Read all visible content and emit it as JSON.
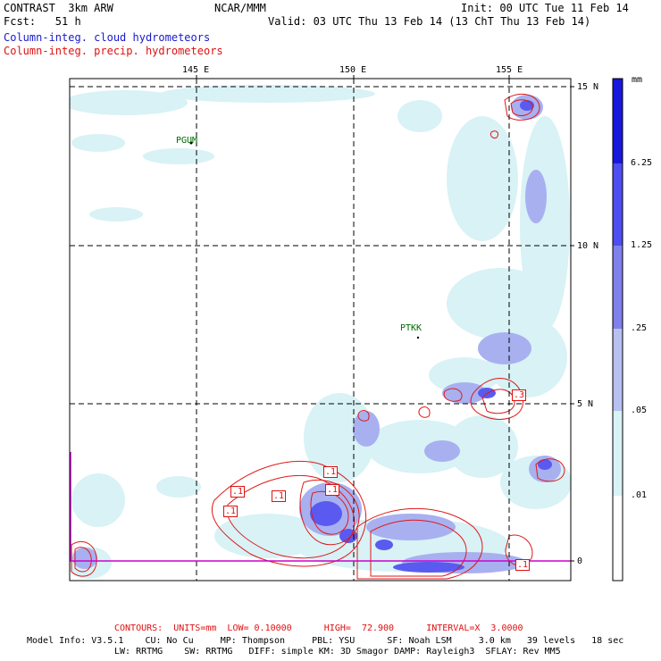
{
  "header": {
    "left_line1": "CONTRAST  3km ARW",
    "left_line2": "Fcst:   51 h",
    "center": "NCAR/MMM",
    "right_line1": "Init: 00 UTC Tue 11 Feb 14",
    "right_line2": "Valid: 03 UTC Thu 13 Feb 14 (13 ChT Thu 13 Feb 14)",
    "legend_cloud": "Column-integ. cloud hydrometeors",
    "legend_precip": "Column-integ. precip. hydrometeors"
  },
  "map": {
    "lon_labels": [
      "145 E",
      "150 E",
      "155 E"
    ],
    "lat_labels": [
      "15 N",
      "10 N",
      "5 N",
      "0"
    ],
    "stations": [
      "PGUM",
      "PTKK"
    ],
    "contour_labels": [
      ".1",
      ".1",
      ".1",
      ".1",
      ".1",
      ".3",
      ".1"
    ]
  },
  "colorbar": {
    "unit": "mm",
    "levels": [
      "6.25",
      "1.25",
      ".25",
      ".05",
      ".01"
    ],
    "colors": [
      "#1818dd",
      "#4d4df0",
      "#8080ec",
      "#b8c0f0",
      "#d8f2f6",
      "#ffffff"
    ]
  },
  "footer": {
    "contours": "CONTOURS:  UNITS=mm  LOW= 0.10000      HIGH=  72.900      INTERVAL=X  3.0000",
    "model_line1": "Model Info: V3.5.1    CU: No Cu     MP: Thompson     PBL: YSU      SF: Noah LSM     3.0 km   39 levels   18 sec",
    "model_line2": "LW: RRTMG    SW: RRTMG   DIFF: simple KM: 3D Smagor DAMP: Rayleigh3  SFLAY: Rev MM5"
  }
}
